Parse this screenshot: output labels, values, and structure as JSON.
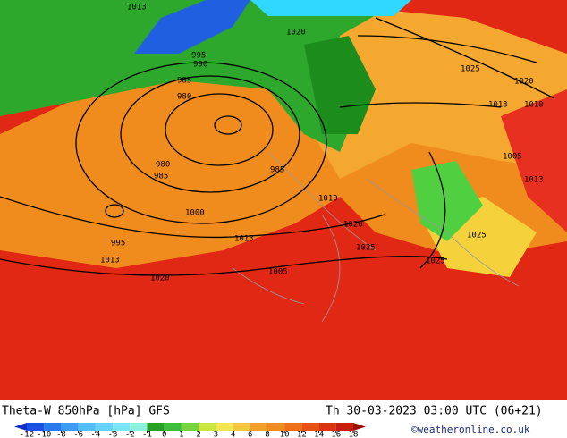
{
  "header": {
    "title": "Theta-W 850hPa [hPa] GFS",
    "valid_time": "Th 30-03-2023 03:00 UTC (06+21)",
    "credit": "©weatheronline.co.uk"
  },
  "map": {
    "isobar_labels": [
      1013,
      1020,
      995,
      990,
      985,
      980,
      985,
      980,
      985,
      995,
      1000,
      1010,
      1013,
      1020,
      1025,
      1005,
      1013,
      1025,
      1025,
      1020,
      1005,
      1013,
      1013,
      1020,
      1025,
      1010
    ]
  },
  "colorbar": {
    "ticks": [
      -12,
      -10,
      -8,
      -6,
      -4,
      -3,
      -2,
      -1,
      0,
      1,
      2,
      3,
      4,
      6,
      8,
      10,
      12,
      14,
      16,
      18
    ],
    "colors": [
      "#1030c8",
      "#1c50e6",
      "#2878f0",
      "#3c9cf5",
      "#50bef8",
      "#64d2fa",
      "#78e6f0",
      "#8cf0dc",
      "#28a028",
      "#3cbe3c",
      "#78d23c",
      "#c8e63c",
      "#f0e650",
      "#f0c83c",
      "#f0a028",
      "#f08c1e",
      "#f06e14",
      "#e85014",
      "#dc320f",
      "#c81e0f",
      "#a0100a"
    ]
  }
}
